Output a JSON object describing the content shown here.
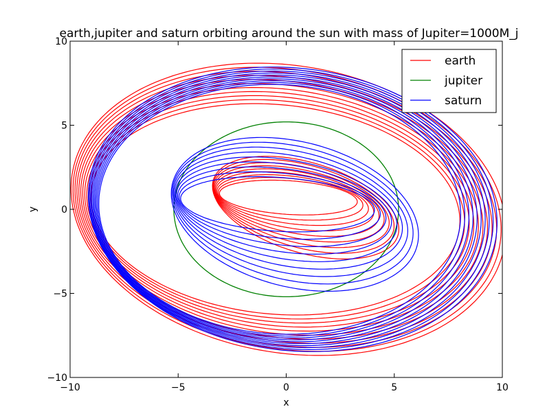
{
  "chart_data": {
    "type": "line",
    "title": "earth,jupiter and saturn orbiting around the sun with mass of Jupiter=1000M_j",
    "xlabel": "x",
    "ylabel": "y",
    "xlim": [
      -10,
      10
    ],
    "ylim": [
      -10,
      10
    ],
    "xticks": [
      -10,
      -5,
      0,
      5,
      10
    ],
    "yticks": [
      -10,
      -5,
      0,
      5,
      10
    ],
    "xtick_labels": [
      "−10",
      "−5",
      "0",
      "5",
      "10"
    ],
    "ytick_labels": [
      "−10",
      "−5",
      "0",
      "5",
      "10"
    ],
    "grid": false,
    "legend_position": "top-right",
    "series": [
      {
        "name": "earth",
        "color": "#ff0000",
        "model": "precessing ellipses plus inner figure-eight excursions",
        "outer_orbits": {
          "loops": 11,
          "semi_major": [
            8.6,
            10.3
          ],
          "semi_minor": [
            6.2,
            8.4
          ],
          "tilt_deg": [
            -10,
            -22
          ],
          "center": [
            -0.2,
            0.0
          ]
        },
        "inner_orbits": {
          "loops": 9,
          "semi_major": [
            3.2,
            4.6
          ],
          "semi_minor": [
            1.0,
            2.6
          ],
          "tilt_deg": [
            -5,
            -25
          ],
          "center": [
            0.5,
            0.4
          ]
        }
      },
      {
        "name": "jupiter",
        "color": "#008000",
        "model": "circle",
        "radius": 5.2,
        "center": [
          0,
          0
        ]
      },
      {
        "name": "saturn",
        "color": "#0000ff",
        "model": "precessing ellipses plus inner figure-eight excursions",
        "outer_orbits": {
          "loops": 10,
          "semi_major": [
            8.4,
            9.6
          ],
          "semi_minor": [
            7.4,
            8.3
          ],
          "tilt_deg": [
            -10,
            -20
          ],
          "center": [
            0.0,
            0.0
          ]
        },
        "inner_orbits": {
          "loops": 9,
          "semi_major": [
            4.5,
            6.0
          ],
          "semi_minor": [
            1.6,
            4.2
          ],
          "tilt_deg": [
            -5,
            -25
          ],
          "center": [
            0.0,
            0.0
          ]
        }
      }
    ]
  }
}
